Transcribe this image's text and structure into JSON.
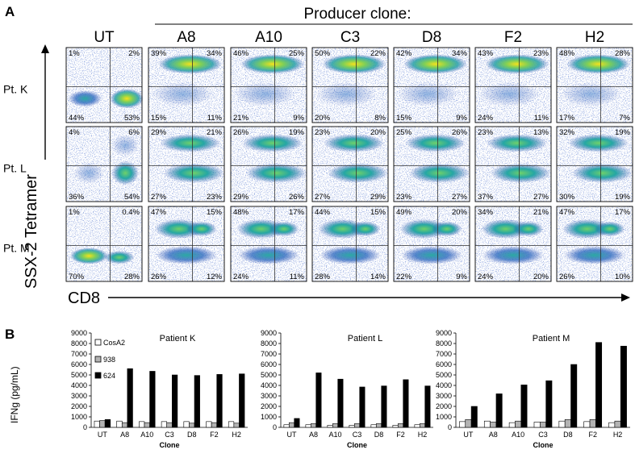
{
  "panel_a": {
    "label": "A",
    "header": "Producer clone:",
    "column_labels": [
      "UT",
      "A8",
      "A10",
      "C3",
      "D8",
      "F2",
      "H2"
    ],
    "row_labels": [
      "Pt. K",
      "Pt. L",
      "Pt. M"
    ],
    "y_axis_label": "SSX-2 Tetramer",
    "x_axis_label": "CD8",
    "quadrants": [
      [
        {
          "ul": "1%",
          "ur": "2%",
          "ll": "44%",
          "lr": "53%"
        },
        {
          "ul": "39%",
          "ur": "34%",
          "ll": "15%",
          "lr": "11%"
        },
        {
          "ul": "46%",
          "ur": "25%",
          "ll": "21%",
          "lr": "9%"
        },
        {
          "ul": "50%",
          "ur": "22%",
          "ll": "20%",
          "lr": "8%"
        },
        {
          "ul": "42%",
          "ur": "34%",
          "ll": "15%",
          "lr": "9%"
        },
        {
          "ul": "43%",
          "ur": "23%",
          "ll": "24%",
          "lr": "11%"
        },
        {
          "ul": "48%",
          "ur": "28%",
          "ll": "17%",
          "lr": "7%"
        }
      ],
      [
        {
          "ul": "4%",
          "ur": "6%",
          "ll": "36%",
          "lr": "54%"
        },
        {
          "ul": "29%",
          "ur": "21%",
          "ll": "27%",
          "lr": "23%"
        },
        {
          "ul": "26%",
          "ur": "19%",
          "ll": "29%",
          "lr": "26%"
        },
        {
          "ul": "23%",
          "ur": "20%",
          "ll": "27%",
          "lr": "29%"
        },
        {
          "ul": "25%",
          "ur": "26%",
          "ll": "23%",
          "lr": "27%"
        },
        {
          "ul": "23%",
          "ur": "13%",
          "ll": "37%",
          "lr": "27%"
        },
        {
          "ul": "32%",
          "ur": "19%",
          "ll": "30%",
          "lr": "19%"
        }
      ],
      [
        {
          "ul": "1%",
          "ur": "0.4%",
          "ll": "70%",
          "lr": "28%"
        },
        {
          "ul": "47%",
          "ur": "15%",
          "ll": "26%",
          "lr": "12%"
        },
        {
          "ul": "48%",
          "ur": "17%",
          "ll": "24%",
          "lr": "11%"
        },
        {
          "ul": "44%",
          "ur": "15%",
          "ll": "28%",
          "lr": "14%"
        },
        {
          "ul": "49%",
          "ur": "20%",
          "ll": "22%",
          "lr": "9%"
        },
        {
          "ul": "34%",
          "ur": "21%",
          "ll": "24%",
          "lr": "20%"
        },
        {
          "ul": "47%",
          "ur": "17%",
          "ll": "26%",
          "lr": "10%"
        }
      ]
    ]
  },
  "panel_b": {
    "label": "B",
    "y_axis_label": "IFNg (pg/mL)",
    "legend": [
      "CosA2",
      "938",
      "624"
    ],
    "x_axis_label": "Clone"
  },
  "colors": {
    "cosa2": "#ffffff",
    "s938": "#b3b3b3",
    "s624": "#000000",
    "dot_low": "#1f3fa8",
    "dot_mid": "#2aa8a0",
    "dot_high": "#f2e21d"
  },
  "chart_data": [
    {
      "type": "bar",
      "title": "Patient K",
      "xlabel": "Clone",
      "ylabel": "IFNg (pg/mL)",
      "ylim": [
        0,
        9000
      ],
      "yticks": [
        0,
        1000,
        2000,
        3000,
        4000,
        5000,
        6000,
        7000,
        8000,
        9000
      ],
      "categories": [
        "UT",
        "A8",
        "A10",
        "C3",
        "D8",
        "F2",
        "H2"
      ],
      "series": [
        {
          "name": "CosA2",
          "values": [
            600,
            600,
            550,
            550,
            550,
            550,
            550
          ]
        },
        {
          "name": "938",
          "values": [
            650,
            450,
            450,
            450,
            400,
            450,
            400
          ]
        },
        {
          "name": "624",
          "values": [
            750,
            5600,
            5350,
            5000,
            4950,
            5050,
            5100
          ]
        }
      ]
    },
    {
      "type": "bar",
      "title": "Patient L",
      "xlabel": "Clone",
      "ylabel": "",
      "ylim": [
        0,
        9000
      ],
      "yticks": [
        0,
        1000,
        2000,
        3000,
        4000,
        5000,
        6000,
        7000,
        8000,
        9000
      ],
      "categories": [
        "UT",
        "A8",
        "A10",
        "C3",
        "D8",
        "F2",
        "H2"
      ],
      "series": [
        {
          "name": "CosA2",
          "values": [
            250,
            250,
            200,
            200,
            250,
            200,
            250
          ]
        },
        {
          "name": "938",
          "values": [
            450,
            350,
            350,
            350,
            350,
            350,
            350
          ]
        },
        {
          "name": "624",
          "values": [
            850,
            5200,
            4600,
            3850,
            3950,
            4550,
            3950
          ]
        }
      ]
    },
    {
      "type": "bar",
      "title": "Patient M",
      "xlabel": "Clone",
      "ylabel": "",
      "ylim": [
        0,
        9000
      ],
      "yticks": [
        0,
        1000,
        2000,
        3000,
        4000,
        5000,
        6000,
        7000,
        8000,
        9000
      ],
      "categories": [
        "UT",
        "A8",
        "A10",
        "C3",
        "D8",
        "F2",
        "H2"
      ],
      "series": [
        {
          "name": "CosA2",
          "values": [
            550,
            600,
            450,
            500,
            600,
            550,
            450
          ]
        },
        {
          "name": "938",
          "values": [
            750,
            500,
            600,
            500,
            750,
            750,
            600
          ]
        },
        {
          "name": "624",
          "values": [
            2000,
            3200,
            4050,
            4450,
            6000,
            8100,
            7750
          ]
        }
      ]
    }
  ]
}
